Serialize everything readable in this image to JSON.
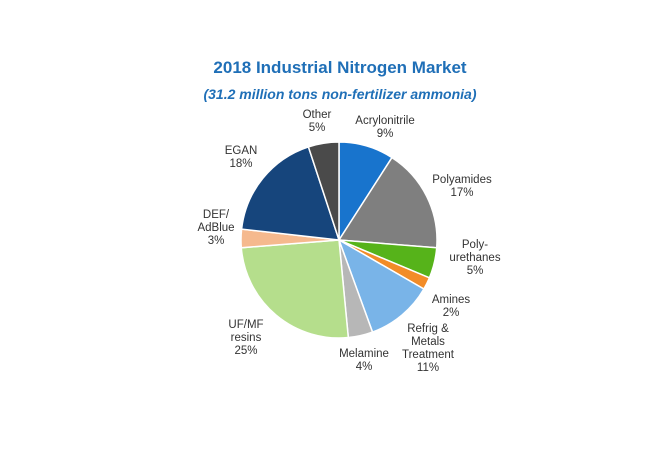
{
  "chart_data": {
    "type": "pie",
    "title": "2018 Industrial Nitrogen Market",
    "subtitle": "(31.2 million tons non-fertilizer ammonia)",
    "slices": [
      {
        "label": [
          "Acrylonitrile"
        ],
        "pct_label": "9%",
        "value": 9,
        "color": "#1874cd"
      },
      {
        "label": [
          "Polyamides"
        ],
        "pct_label": "17%",
        "value": 17,
        "color": "#7f7f7f"
      },
      {
        "label": [
          "Poly-",
          "urethanes"
        ],
        "pct_label": "5%",
        "value": 5,
        "color": "#56b31a"
      },
      {
        "label": [
          "Amines"
        ],
        "pct_label": "2%",
        "value": 2,
        "color": "#f28c28"
      },
      {
        "label": [
          "Refrig &",
          "Metals",
          "Treatment"
        ],
        "pct_label": "11%",
        "value": 11,
        "color": "#79b4e8"
      },
      {
        "label": [
          "Melamine"
        ],
        "pct_label": "4%",
        "value": 4,
        "color": "#b7b7b7"
      },
      {
        "label": [
          "UF/MF",
          "resins"
        ],
        "pct_label": "25%",
        "value": 25,
        "color": "#b5de8c"
      },
      {
        "label": [
          "DEF/",
          "AdBlue"
        ],
        "pct_label": "3%",
        "value": 3,
        "color": "#f5b98e"
      },
      {
        "label": [
          "EGAN"
        ],
        "pct_label": "18%",
        "value": 18,
        "color": "#16457c"
      },
      {
        "label": [
          "Other"
        ],
        "pct_label": "5%",
        "value": 5,
        "color": "#4a4a4a"
      }
    ]
  }
}
